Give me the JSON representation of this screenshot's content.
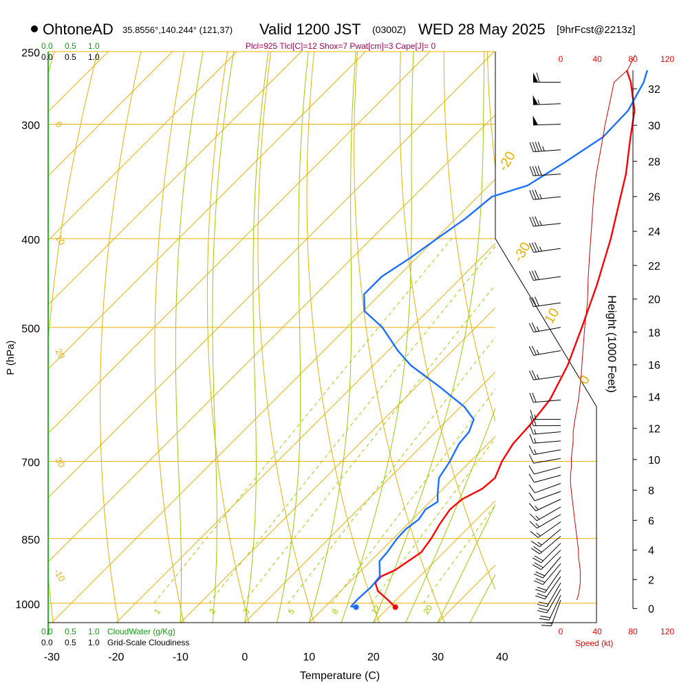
{
  "header": {
    "station": "OhtoneAD",
    "coords": "35.8556°,140.244° (121,37)",
    "valid_main": "Valid 1200 JST",
    "valid_utc": "(0300Z)",
    "valid_date": "WED 28 May 2025",
    "forecast": "[9hrFcst@2213z]"
  },
  "indices": "Plcl=925 Tlcl[C]=12 Shox=7 Pwat[cm]=3 Cape[J]= 0",
  "scales": {
    "cloudwater_ticks": [
      "0.0",
      "0.5",
      "1.0"
    ],
    "cloudiness_ticks": [
      "0.0",
      "0.5",
      "1.0"
    ],
    "cloudwater_label": "CloudWater (g/Kg)",
    "cloudiness_label": "Grid-Scale Cloudiness",
    "speed_ticks": [
      "0",
      "40",
      "80",
      "120"
    ],
    "speed_label": "Speed (kt)"
  },
  "colors": {
    "temperature": "#ff0000",
    "dewpoint": "#1a6fff",
    "isobar": "#e8b000",
    "dry_adiabat": "#e8b000",
    "moist_adiabat": "#99cc00",
    "mixing_ratio": "#99cc00",
    "cloud": "#00aa00",
    "wind_barb": "#000000",
    "wind_speed": "#cc0000",
    "height": "#000000"
  },
  "chart_data": {
    "type": "skew-t",
    "xlabel": "Temperature (C)",
    "ylabel": "P (hPa)",
    "y2label": "Height (1000 Feet)",
    "x_ticks": [
      -30,
      -20,
      -10,
      0,
      10,
      20,
      30,
      40
    ],
    "p_ticks": [
      250,
      300,
      400,
      500,
      700,
      850,
      1000
    ],
    "height_ticks": [
      0,
      2,
      4,
      6,
      8,
      10,
      12,
      14,
      16,
      18,
      20,
      22,
      24,
      26,
      28,
      30,
      32
    ],
    "isotherm_labels": [
      "0",
      "10",
      "20",
      "30",
      "-10",
      "-20",
      "-30",
      "10",
      "0",
      "-10",
      "-20",
      "-30"
    ],
    "mixing_ratio_labels": [
      "1",
      "2",
      "3",
      "5",
      "8",
      "12",
      "20"
    ],
    "temperature_profile": [
      [
        1010,
        21.0
      ],
      [
        990,
        18.5
      ],
      [
        970,
        15.8
      ],
      [
        950,
        14.1
      ],
      [
        935,
        14.0
      ],
      [
        920,
        15.2
      ],
      [
        880,
        16.5
      ],
      [
        850,
        15.9
      ],
      [
        820,
        15.0
      ],
      [
        790,
        14.3
      ],
      [
        770,
        14.6
      ],
      [
        750,
        16.1
      ],
      [
        730,
        16.4
      ],
      [
        700,
        14.9
      ],
      [
        670,
        13.9
      ],
      [
        640,
        13.6
      ],
      [
        600,
        12.8
      ],
      [
        550,
        10.2
      ],
      [
        500,
        6.5
      ],
      [
        450,
        2.3
      ],
      [
        400,
        -2.8
      ],
      [
        370,
        -6.5
      ],
      [
        340,
        -10.5
      ],
      [
        310,
        -15.5
      ],
      [
        290,
        -19.0
      ],
      [
        270,
        -24.0
      ],
      [
        262,
        -26.5
      ]
    ],
    "dewpoint_profile": [
      [
        1010,
        14.9
      ],
      [
        1008,
        14.0
      ],
      [
        990,
        13.9
      ],
      [
        960,
        14.1
      ],
      [
        935,
        13.8
      ],
      [
        920,
        12.8
      ],
      [
        900,
        11.4
      ],
      [
        880,
        11.2
      ],
      [
        850,
        10.6
      ],
      [
        830,
        10.5
      ],
      [
        810,
        11.0
      ],
      [
        790,
        10.5
      ],
      [
        775,
        11.2
      ],
      [
        760,
        10.0
      ],
      [
        730,
        7.7
      ],
      [
        700,
        6.8
      ],
      [
        670,
        5.5
      ],
      [
        650,
        5.2
      ],
      [
        630,
        4.0
      ],
      [
        610,
        0.5
      ],
      [
        580,
        -6.5
      ],
      [
        550,
        -14.2
      ],
      [
        530,
        -18.5
      ],
      [
        500,
        -24.5
      ],
      [
        480,
        -29.8
      ],
      [
        460,
        -32.5
      ],
      [
        440,
        -32.5
      ],
      [
        420,
        -31.0
      ],
      [
        400,
        -29.8
      ],
      [
        380,
        -28.5
      ],
      [
        360,
        -27.8
      ],
      [
        350,
        -24.0
      ],
      [
        330,
        -21.8
      ],
      [
        310,
        -19.8
      ],
      [
        290,
        -20.0
      ],
      [
        270,
        -22.0
      ],
      [
        262,
        -23.3
      ]
    ],
    "wind_profile": [
      [
        992,
        18,
        200
      ],
      [
        980,
        20,
        205
      ],
      [
        965,
        21,
        210
      ],
      [
        950,
        22,
        210
      ],
      [
        935,
        22,
        215
      ],
      [
        920,
        22,
        215
      ],
      [
        905,
        21,
        220
      ],
      [
        890,
        20,
        220
      ],
      [
        875,
        20,
        225
      ],
      [
        860,
        19,
        225
      ],
      [
        845,
        18,
        230
      ],
      [
        830,
        17,
        230
      ],
      [
        815,
        16,
        235
      ],
      [
        800,
        15,
        240
      ],
      [
        785,
        14,
        240
      ],
      [
        770,
        13,
        245
      ],
      [
        755,
        12,
        250
      ],
      [
        740,
        11,
        250
      ],
      [
        725,
        11,
        255
      ],
      [
        710,
        12,
        255
      ],
      [
        695,
        12,
        260
      ],
      [
        680,
        13,
        260
      ],
      [
        665,
        14,
        265
      ],
      [
        650,
        14,
        265
      ],
      [
        640,
        15,
        270
      ],
      [
        630,
        16,
        270
      ],
      [
        600,
        20,
        265
      ],
      [
        565,
        23,
        262
      ],
      [
        530,
        25,
        260
      ],
      [
        500,
        27,
        260
      ],
      [
        470,
        30,
        262
      ],
      [
        440,
        31,
        262
      ],
      [
        410,
        33,
        262
      ],
      [
        385,
        35,
        264
      ],
      [
        360,
        37,
        264
      ],
      [
        340,
        40,
        266
      ],
      [
        320,
        45,
        266
      ],
      [
        300,
        50,
        268
      ],
      [
        285,
        55,
        268
      ],
      [
        270,
        60,
        270
      ]
    ]
  }
}
